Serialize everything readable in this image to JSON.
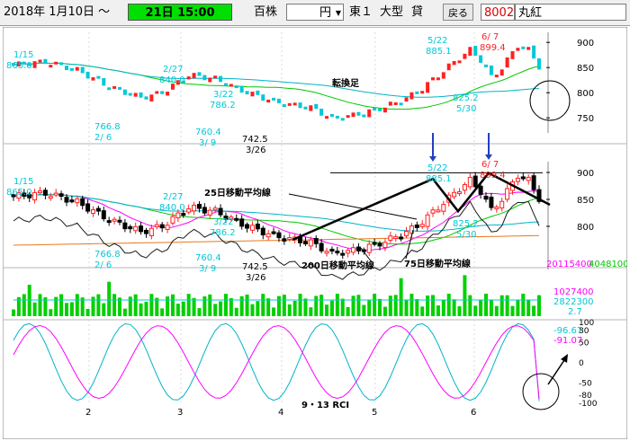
{
  "toolbar": {
    "start_date": "2018年 1月10日 ～",
    "period": "21日 15:00",
    "unit_label": "百株",
    "currency": "円",
    "market": "東１",
    "size": "大型",
    "margin": "貸",
    "back_button": "戻る",
    "code": "8002",
    "name": "丸紅"
  },
  "colors": {
    "background": "#000000",
    "up_candle": "#ff2020",
    "down_candle": "#00c8d8",
    "ma25": "#00c800",
    "ma75": "#00b4c8",
    "ma200": "#e8781e",
    "bollinger": "#ff00ff",
    "volume": "#00d000",
    "annotation": "#000000",
    "arrow": "#2040c0"
  },
  "chart_data": [
    {
      "type": "candlestick",
      "panel": "heikin-ashi",
      "ylim": [
        720,
        920
      ],
      "yticks": [
        750,
        800,
        850,
        900
      ],
      "labels": [
        {
          "text": "1/15",
          "color": "#00c8d8"
        },
        {
          "text": "865.0",
          "color": "#00c8d8"
        },
        {
          "text": "2/27",
          "color": "#00c8d8"
        },
        {
          "text": "840.0",
          "color": "#00c8d8"
        },
        {
          "text": "766.8",
          "color": "#00c8d8"
        },
        {
          "text": "2/ 6",
          "color": "#00c8d8"
        },
        {
          "text": "3/22",
          "color": "#00c8d8"
        },
        {
          "text": "786.2",
          "color": "#00c8d8"
        },
        {
          "text": "760.4",
          "color": "#00c8d8"
        },
        {
          "text": "3/ 9",
          "color": "#00c8d8"
        },
        {
          "text": "742.5",
          "color": "#ffffff"
        },
        {
          "text": "3/26",
          "color": "#ffffff"
        },
        {
          "text": "5/22",
          "color": "#00c8d8"
        },
        {
          "text": "885.1",
          "color": "#00c8d8"
        },
        {
          "text": "6/ 7",
          "color": "#ff2020"
        },
        {
          "text": "899.4",
          "color": "#ff2020"
        },
        {
          "text": "825.2",
          "color": "#00c8d8"
        },
        {
          "text": "5/30",
          "color": "#00c8d8"
        }
      ],
      "annotation": "転換足"
    },
    {
      "type": "candlestick",
      "panel": "price",
      "ylim": [
        720,
        920
      ],
      "yticks": [
        800,
        850,
        900
      ],
      "last_values": [
        "20115400",
        "4048100"
      ],
      "labels": [
        {
          "text": "1/15",
          "color": "#00c8d8"
        },
        {
          "text": "865.0",
          "color": "#00c8d8"
        },
        {
          "text": "2/27",
          "color": "#00c8d8"
        },
        {
          "text": "840.0",
          "color": "#00c8d8"
        },
        {
          "text": "766.8",
          "color": "#00c8d8"
        },
        {
          "text": "2/ 6",
          "color": "#00c8d8"
        },
        {
          "text": "3/22",
          "color": "#00c8d8"
        },
        {
          "text": "786.2",
          "color": "#00c8d8"
        },
        {
          "text": "760.4",
          "color": "#00c8d8"
        },
        {
          "text": "3/ 9",
          "color": "#00c8d8"
        },
        {
          "text": "742.5",
          "color": "#ffffff"
        },
        {
          "text": "3/26",
          "color": "#ffffff"
        },
        {
          "text": "5/22",
          "color": "#00c8d8"
        },
        {
          "text": "885.1",
          "color": "#00c8d8"
        },
        {
          "text": "6/ 7",
          "color": "#ff2020"
        },
        {
          "text": "899.4",
          "color": "#ff2020"
        },
        {
          "text": "825.2",
          "color": "#00c8d8"
        },
        {
          "text": "5/30",
          "color": "#00c8d8"
        }
      ],
      "annotations": [
        "25日移動平均線",
        "200日移動平均線",
        "75日移動平均線"
      ],
      "series": [
        {
          "name": "25日移動平均線",
          "color": "#00c800"
        },
        {
          "name": "75日移動平均線",
          "color": "#00b4c8"
        },
        {
          "name": "200日移動平均線",
          "color": "#e8781e"
        }
      ]
    },
    {
      "type": "bar",
      "panel": "volume",
      "last_values": [
        "1027400",
        "2822300",
        "2.7"
      ]
    },
    {
      "type": "line",
      "panel": "RCI",
      "ylim": [
        -100,
        100
      ],
      "yticks": [
        100,
        80,
        50,
        0,
        -50,
        -80,
        -100
      ],
      "title": "9・13 RCI",
      "last_values": [
        "-96.67",
        "-91.07"
      ],
      "series": [
        {
          "name": "9",
          "color": "#00c8d8"
        },
        {
          "name": "13",
          "color": "#ff00ff"
        }
      ],
      "x_labels": [
        "2",
        "3",
        "4",
        "5",
        "6"
      ]
    }
  ]
}
